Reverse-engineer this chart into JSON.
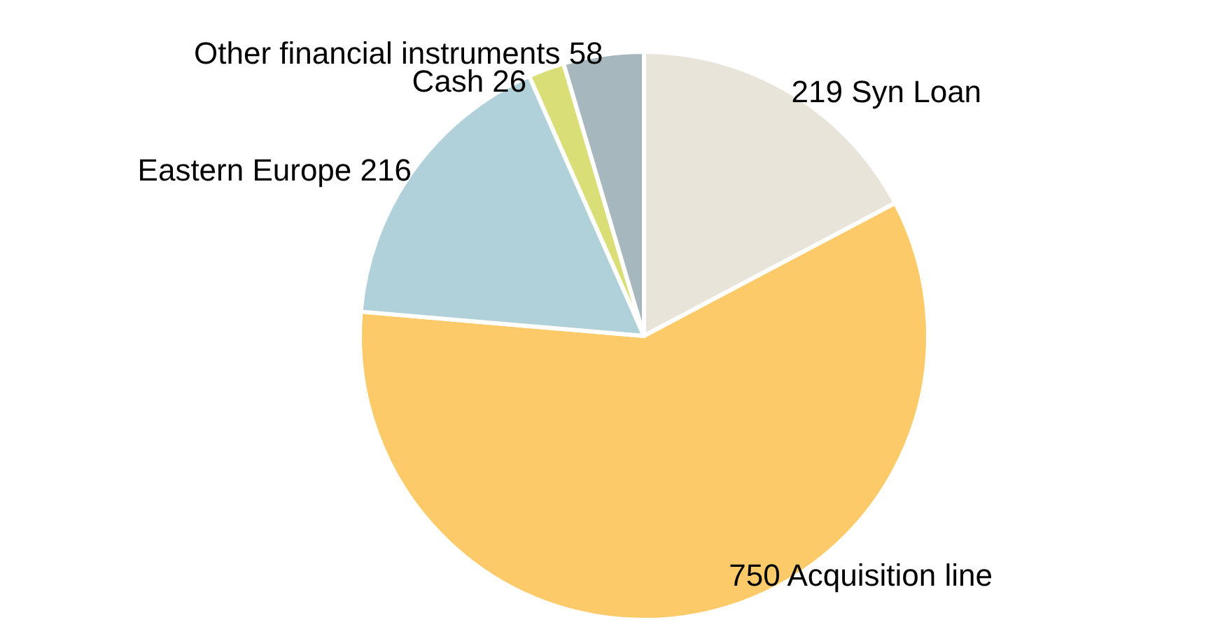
{
  "chart_data": {
    "type": "pie",
    "categories": [
      "219 Syn Loan",
      "750 Acquisition line",
      "Eastern Europe 216",
      "Cash 26",
      "Other financial instruments 58"
    ],
    "values": [
      219,
      750,
      216,
      26,
      58
    ],
    "colors": [
      "#e9e4da",
      "#fcca68",
      "#b0d0da",
      "#d9de76",
      "#a6b7bd"
    ],
    "legend": false
  }
}
